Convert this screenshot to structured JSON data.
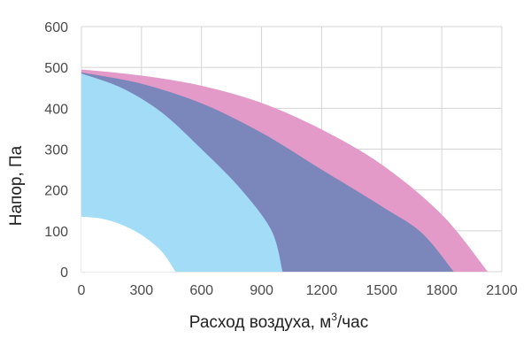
{
  "chart_data": {
    "type": "area",
    "xlabel": "Расход воздуха, м",
    "xlabel_sup": "3",
    "xlabel_suffix": "/час",
    "ylabel": "Напор, Па",
    "xlim": [
      0,
      2100
    ],
    "ylim": [
      0,
      600
    ],
    "x_ticks": [
      "0",
      "300",
      "600",
      "900",
      "1200",
      "1500",
      "1800",
      "2100"
    ],
    "y_ticks": [
      "0",
      "100",
      "200",
      "300",
      "400",
      "500",
      "600"
    ],
    "grid": true,
    "legend": "none",
    "series": [
      {
        "color": "#e39ac9",
        "points": [
          [
            0,
            495
          ],
          [
            300,
            480
          ],
          [
            600,
            455
          ],
          [
            900,
            413
          ],
          [
            1200,
            348
          ],
          [
            1500,
            262
          ],
          [
            1800,
            140
          ],
          [
            2030,
            0
          ]
        ]
      },
      {
        "color": "#7b87bb",
        "points": [
          [
            0,
            488
          ],
          [
            300,
            460
          ],
          [
            600,
            412
          ],
          [
            900,
            340
          ],
          [
            1200,
            250
          ],
          [
            1500,
            160
          ],
          [
            1700,
            95
          ],
          [
            1860,
            0
          ]
        ]
      },
      {
        "color": "#a2dcf6",
        "points": [
          [
            0,
            485
          ],
          [
            200,
            450
          ],
          [
            400,
            390
          ],
          [
            600,
            300
          ],
          [
            800,
            200
          ],
          [
            950,
            100
          ],
          [
            1005,
            0
          ]
        ]
      },
      {
        "color": "#ffffff",
        "points": [
          [
            0,
            135
          ],
          [
            100,
            130
          ],
          [
            200,
            115
          ],
          [
            300,
            90
          ],
          [
            400,
            50
          ],
          [
            470,
            0
          ]
        ]
      }
    ]
  }
}
